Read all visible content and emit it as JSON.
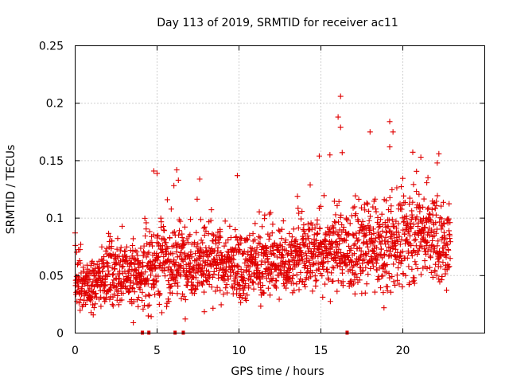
{
  "chart_data": {
    "type": "scatter",
    "title": "Day 113 of 2019, SRMTID for receiver ac11",
    "xlabel": "GPS time / hours",
    "ylabel": "SRMTID / TECUs",
    "xlim": [
      0,
      25
    ],
    "ylim": [
      0,
      0.25
    ],
    "xticks": [
      0,
      5,
      10,
      15,
      20
    ],
    "xtick_labels": [
      "0",
      "5",
      "10",
      "15",
      "20"
    ],
    "yticks": [
      0,
      0.05,
      0.1,
      0.15,
      0.2,
      0.25
    ],
    "ytick_labels": [
      "0",
      "0.05",
      "0.1",
      "0.15",
      "0.2",
      "0.25"
    ],
    "grid": true,
    "marker": "+",
    "series_color": "#e00000",
    "data_range_hours": [
      0,
      22.9
    ],
    "zero_value_points": [
      4.1,
      4.5,
      6.1,
      6.6,
      16.6
    ],
    "trend": [
      {
        "hour": 0.0,
        "typical": 0.045,
        "spread": 0.015
      },
      {
        "hour": 1.0,
        "typical": 0.04,
        "spread": 0.012
      },
      {
        "hour": 2.0,
        "typical": 0.055,
        "spread": 0.016
      },
      {
        "hour": 3.0,
        "typical": 0.05,
        "spread": 0.016
      },
      {
        "hour": 4.0,
        "typical": 0.05,
        "spread": 0.016
      },
      {
        "hour": 5.0,
        "typical": 0.065,
        "spread": 0.022
      },
      {
        "hour": 6.0,
        "typical": 0.06,
        "spread": 0.02
      },
      {
        "hour": 7.0,
        "typical": 0.063,
        "spread": 0.018
      },
      {
        "hour": 8.0,
        "typical": 0.062,
        "spread": 0.017
      },
      {
        "hour": 9.0,
        "typical": 0.06,
        "spread": 0.017
      },
      {
        "hour": 10.0,
        "typical": 0.058,
        "spread": 0.016
      },
      {
        "hour": 11.0,
        "typical": 0.06,
        "spread": 0.016
      },
      {
        "hour": 12.0,
        "typical": 0.062,
        "spread": 0.016
      },
      {
        "hour": 13.0,
        "typical": 0.063,
        "spread": 0.017
      },
      {
        "hour": 14.0,
        "typical": 0.068,
        "spread": 0.018
      },
      {
        "hour": 15.0,
        "typical": 0.072,
        "spread": 0.02
      },
      {
        "hour": 16.0,
        "typical": 0.075,
        "spread": 0.022
      },
      {
        "hour": 17.0,
        "typical": 0.07,
        "spread": 0.02
      },
      {
        "hour": 18.0,
        "typical": 0.075,
        "spread": 0.02
      },
      {
        "hour": 19.0,
        "typical": 0.072,
        "spread": 0.022
      },
      {
        "hour": 20.0,
        "typical": 0.082,
        "spread": 0.022
      },
      {
        "hour": 21.0,
        "typical": 0.09,
        "spread": 0.022
      },
      {
        "hour": 22.0,
        "typical": 0.08,
        "spread": 0.022
      },
      {
        "hour": 22.9,
        "typical": 0.075,
        "spread": 0.02
      }
    ],
    "spikes": [
      {
        "hour": 3.55,
        "value": 0.009
      },
      {
        "hour": 4.8,
        "value": 0.141
      },
      {
        "hour": 5.0,
        "value": 0.139
      },
      {
        "hour": 6.2,
        "value": 0.142
      },
      {
        "hour": 6.3,
        "value": 0.133
      },
      {
        "hour": 7.6,
        "value": 0.134
      },
      {
        "hour": 9.9,
        "value": 0.137
      },
      {
        "hour": 14.9,
        "value": 0.154
      },
      {
        "hour": 15.55,
        "value": 0.155
      },
      {
        "hour": 16.05,
        "value": 0.188
      },
      {
        "hour": 16.2,
        "value": 0.206
      },
      {
        "hour": 16.2,
        "value": 0.179
      },
      {
        "hour": 16.3,
        "value": 0.157
      },
      {
        "hour": 18.0,
        "value": 0.175
      },
      {
        "hour": 18.85,
        "value": 0.022
      },
      {
        "hour": 19.2,
        "value": 0.184
      },
      {
        "hour": 19.4,
        "value": 0.175
      },
      {
        "hour": 19.2,
        "value": 0.162
      },
      {
        "hour": 22.2,
        "value": 0.156
      },
      {
        "hour": 22.1,
        "value": 0.148
      },
      {
        "hour": 21.1,
        "value": 0.153
      }
    ]
  }
}
